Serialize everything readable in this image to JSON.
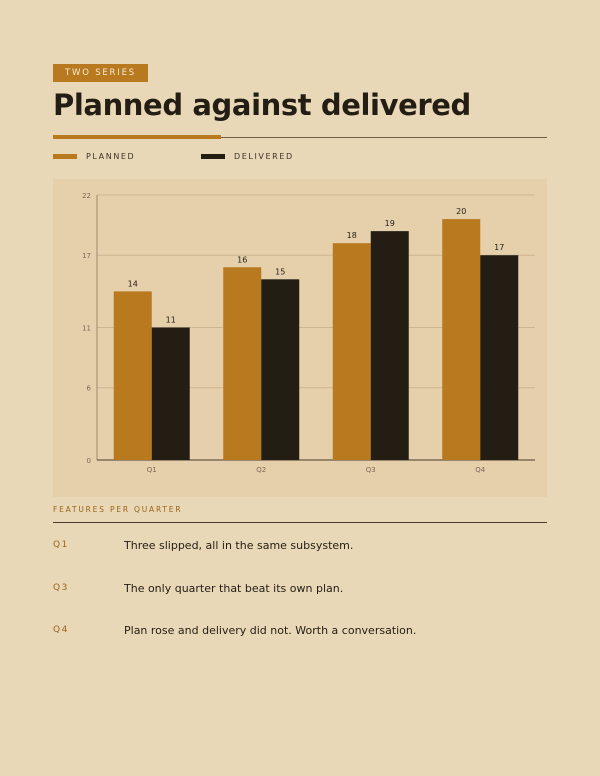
{
  "header": {
    "eyebrow": "TWO SERIES",
    "title": "Planned against delivered"
  },
  "legend": [
    {
      "label": "PLANNED",
      "color": "#b8791f"
    },
    {
      "label": "DELIVERED",
      "color": "#231d14"
    }
  ],
  "chart_data": {
    "type": "bar",
    "categories": [
      "Q1",
      "Q2",
      "Q3",
      "Q4"
    ],
    "series": [
      {
        "name": "PLANNED",
        "values": [
          14,
          16,
          18,
          20
        ],
        "color": "#b8791f"
      },
      {
        "name": "DELIVERED",
        "values": [
          11,
          15,
          19,
          17
        ],
        "color": "#231d14"
      }
    ],
    "y_ticks": [
      0,
      6,
      11,
      17,
      22
    ],
    "ylim": [
      0,
      22
    ],
    "grid": true,
    "legend_position": "top-left"
  },
  "caption": "FEATURES PER QUARTER",
  "notes": [
    {
      "quarter": "Q1",
      "text": "Three slipped, all in the same subsystem."
    },
    {
      "quarter": "Q3",
      "text": "The only quarter that beat its own plan."
    },
    {
      "quarter": "Q4",
      "text": "Plan rose and delivery did not. Worth a conversation."
    }
  ]
}
